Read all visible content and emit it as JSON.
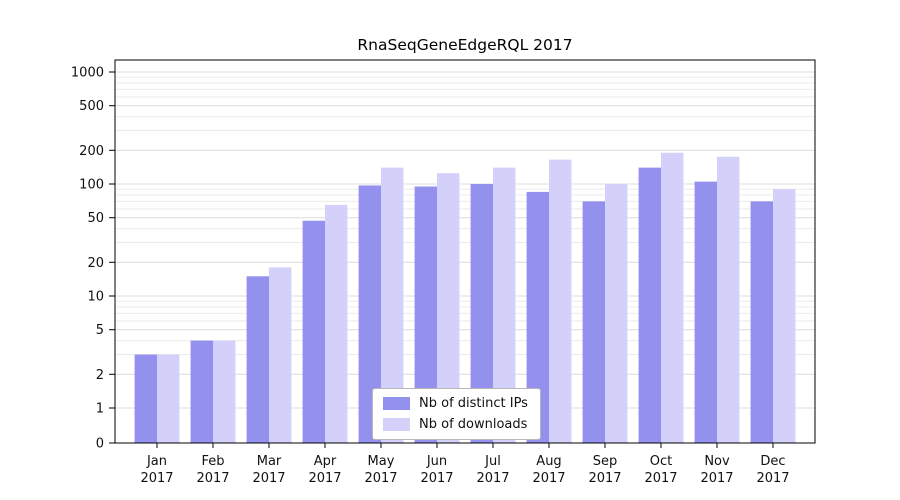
{
  "figure": {
    "title": "RnaSeqGeneEdgeRQL 2017"
  },
  "legend": {
    "items": [
      {
        "label": "Nb of distinct IPs",
        "color": "#9490ee"
      },
      {
        "label": "Nb of downloads",
        "color": "#d3d1f9"
      }
    ]
  },
  "chart_data": {
    "type": "bar",
    "title": "RnaSeqGeneEdgeRQL 2017",
    "categories": [
      "Jan",
      "Feb",
      "Mar",
      "Apr",
      "May",
      "Jun",
      "Jul",
      "Aug",
      "Sep",
      "Oct",
      "Nov",
      "Dec"
    ],
    "year": "2017",
    "series": [
      {
        "name": "Nb of distinct IPs",
        "color": "#9490ee",
        "values": [
          3,
          4,
          15,
          47,
          97,
          95,
          100,
          85,
          70,
          140,
          105,
          70
        ]
      },
      {
        "name": "Nb of downloads",
        "color": "#d3d1f9",
        "values": [
          3,
          4,
          18,
          65,
          140,
          125,
          140,
          165,
          100,
          190,
          175,
          90
        ]
      }
    ],
    "yticks": [
      0,
      1,
      2,
      5,
      10,
      20,
      50,
      100,
      200,
      500,
      1000
    ],
    "yscale": "symlog",
    "ylim": [
      0,
      1200
    ],
    "grid": true,
    "legend_position": "lower center inside plot",
    "xlabel": "",
    "ylabel": ""
  }
}
